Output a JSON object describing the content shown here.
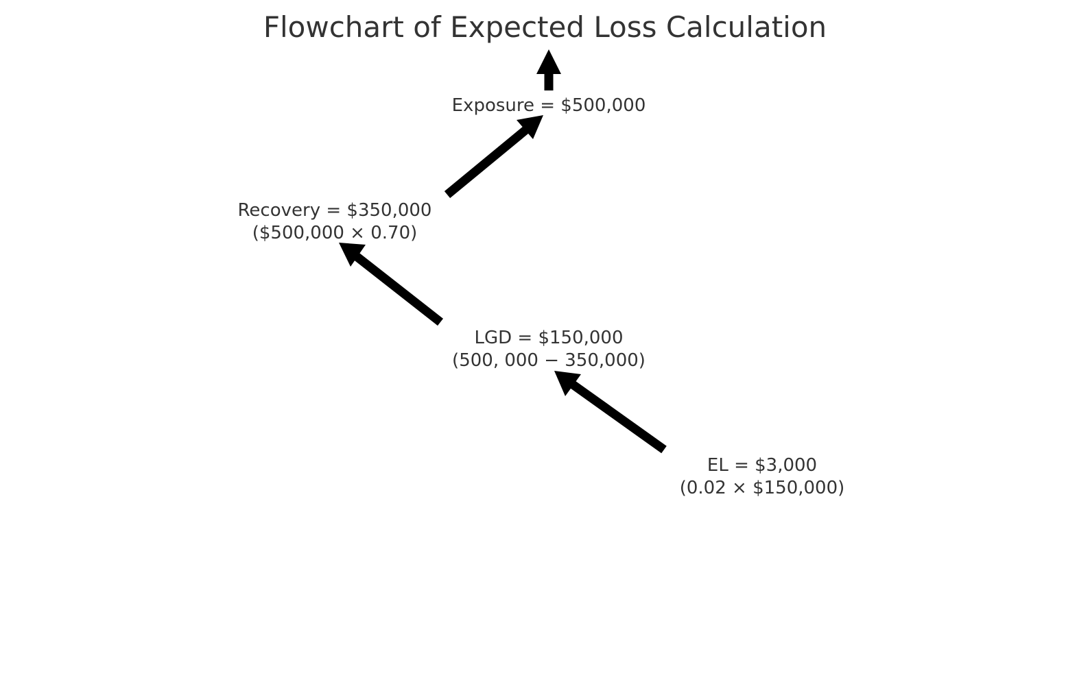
{
  "title": "Flowchart of Expected Loss Calculation",
  "nodes": {
    "exposure": {
      "line1": "Exposure = $500,000",
      "line2": ""
    },
    "recovery": {
      "line1": "Recovery = $350,000",
      "line2": "($500,000 × 0.70)"
    },
    "lgd": {
      "line1": "LGD = $150,000",
      "line2": "(500, 000 − 350,000)"
    },
    "el": {
      "line1": "EL = $3,000",
      "line2": "(0.02 × $150,000)"
    }
  },
  "arrow_color": "#000000",
  "text_color": "#333333"
}
